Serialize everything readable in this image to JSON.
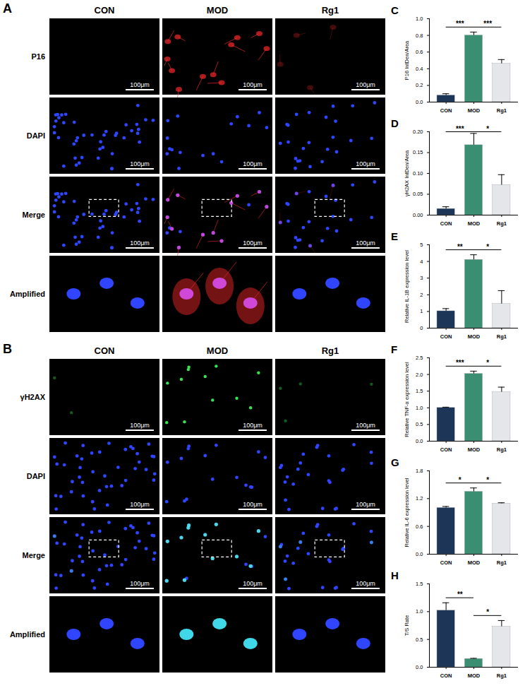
{
  "image_panels": [
    {
      "panel": "A",
      "columns": [
        "CON",
        "MOD",
        "Rg1"
      ],
      "rows": [
        "P16",
        "DAPI",
        "Merge",
        "Amplified"
      ],
      "scale_bar": "100μm"
    },
    {
      "panel": "B",
      "columns": [
        "CON",
        "MOD",
        "Rg1"
      ],
      "rows": [
        "γH2AX",
        "DAPI",
        "Merge",
        "Amplified"
      ],
      "scale_bar": "100μm"
    }
  ],
  "chart_data": [
    {
      "panel": "C",
      "type": "bar",
      "ylabel": "P16 IntDen/Area",
      "categories": [
        "CON",
        "MOD",
        "Rg1"
      ],
      "values": [
        0.08,
        0.8,
        0.46
      ],
      "errors": [
        0.02,
        0.04,
        0.05
      ],
      "colors": [
        "#1d3557",
        "#3a8f72",
        "#e4e6ea"
      ],
      "ylim": [
        0,
        1
      ],
      "yticks": [
        {
          "value": 0,
          "label": "0.0"
        },
        {
          "value": 0.2,
          "label": "0.2"
        },
        {
          "value": 0.4,
          "label": "0.4"
        },
        {
          "value": 0.6,
          "label": "0.6"
        },
        {
          "value": 0.8,
          "label": "0.8"
        },
        {
          "value": 1,
          "label": "1.0"
        }
      ],
      "significance": [
        {
          "from": "CON",
          "to": "MOD",
          "label": "***"
        },
        {
          "from": "MOD",
          "to": "Rg1",
          "label": "***"
        }
      ]
    },
    {
      "panel": "D",
      "type": "bar",
      "ylabel": "γH2AX IntDen/Area",
      "categories": [
        "CON",
        "MOD",
        "Rg1"
      ],
      "values": [
        0.015,
        0.168,
        0.072
      ],
      "errors": [
        0.005,
        0.028,
        0.025
      ],
      "colors": [
        "#1d3557",
        "#3a8f72",
        "#e4e6ea"
      ],
      "ylim": [
        0,
        0.2
      ],
      "yticks": [
        {
          "value": 0,
          "label": "0.00"
        },
        {
          "value": 0.05,
          "label": "0.05"
        },
        {
          "value": 0.1,
          "label": "0.10"
        },
        {
          "value": 0.15,
          "label": "0.15"
        },
        {
          "value": 0.2,
          "label": "0.20"
        }
      ],
      "significance": [
        {
          "from": "CON",
          "to": "MOD",
          "label": "***"
        },
        {
          "from": "MOD",
          "to": "Rg1",
          "label": "*"
        }
      ]
    },
    {
      "panel": "E",
      "type": "bar",
      "ylabel": "Relative IL-1B expression level",
      "categories": [
        "CON",
        "MOD",
        "Rg1"
      ],
      "values": [
        1.02,
        4.1,
        1.45
      ],
      "errors": [
        0.15,
        0.3,
        0.8
      ],
      "colors": [
        "#1d3557",
        "#3a8f72",
        "#e4e6ea"
      ],
      "ylim": [
        0,
        5
      ],
      "yticks": [
        0,
        1,
        2,
        3,
        4,
        5
      ],
      "significance": [
        {
          "from": "CON",
          "to": "MOD",
          "label": "**"
        },
        {
          "from": "MOD",
          "to": "Rg1",
          "label": "*"
        }
      ]
    },
    {
      "panel": "F",
      "type": "bar",
      "ylabel": "Relative TNF-α expression level",
      "categories": [
        "CON",
        "MOD",
        "Rg1"
      ],
      "values": [
        1.0,
        2.02,
        1.47
      ],
      "errors": [
        0.02,
        0.08,
        0.15
      ],
      "colors": [
        "#1d3557",
        "#3a8f72",
        "#e4e6ea"
      ],
      "ylim": [
        0,
        2.5
      ],
      "yticks": [
        {
          "value": 0,
          "label": "0.0"
        },
        {
          "value": 0.5,
          "label": "0.5"
        },
        {
          "value": 1,
          "label": "1.0"
        },
        {
          "value": 1.5,
          "label": "1.5"
        },
        {
          "value": 2,
          "label": "2.0"
        },
        {
          "value": 2.5,
          "label": "2.5"
        }
      ],
      "significance": [
        {
          "from": "CON",
          "to": "MOD",
          "label": "***"
        },
        {
          "from": "MOD",
          "to": "Rg1",
          "label": "*"
        }
      ]
    },
    {
      "panel": "G",
      "type": "bar",
      "ylabel": "Relative IL-6 expression level",
      "categories": [
        "CON",
        "MOD",
        "Rg1"
      ],
      "values": [
        1.0,
        1.35,
        1.09
      ],
      "errors": [
        0.03,
        0.08,
        0.02
      ],
      "colors": [
        "#1d3557",
        "#3a8f72",
        "#e4e6ea"
      ],
      "ylim": [
        0,
        1.8
      ],
      "yticks": [
        {
          "value": 0,
          "label": "0.0"
        },
        {
          "value": 0.6,
          "label": "0.6"
        },
        {
          "value": 1.2,
          "label": "1.2"
        },
        {
          "value": 1.8,
          "label": "1.8"
        }
      ],
      "significance": [
        {
          "from": "CON",
          "to": "MOD",
          "label": "*"
        },
        {
          "from": "MOD",
          "to": "Rg1",
          "label": "*"
        }
      ]
    },
    {
      "panel": "H",
      "type": "bar",
      "ylabel": "T/S Rate",
      "categories": [
        "CON",
        "MOD",
        "Rg1"
      ],
      "values": [
        1.02,
        0.15,
        0.73
      ],
      "errors": [
        0.14,
        0.01,
        0.11
      ],
      "colors": [
        "#1d3557",
        "#3a8f72",
        "#e4e6ea"
      ],
      "ylim": [
        0,
        1.5
      ],
      "yticks": [
        {
          "value": 0,
          "label": "0.0"
        },
        {
          "value": 0.5,
          "label": "0.5"
        },
        {
          "value": 1,
          "label": "1.0"
        },
        {
          "value": 1.5,
          "label": "1.5"
        }
      ],
      "significance": [
        {
          "from": "CON",
          "to": "MOD",
          "label": "**"
        },
        {
          "from": "MOD",
          "to": "Rg1",
          "label": "*"
        }
      ]
    }
  ]
}
